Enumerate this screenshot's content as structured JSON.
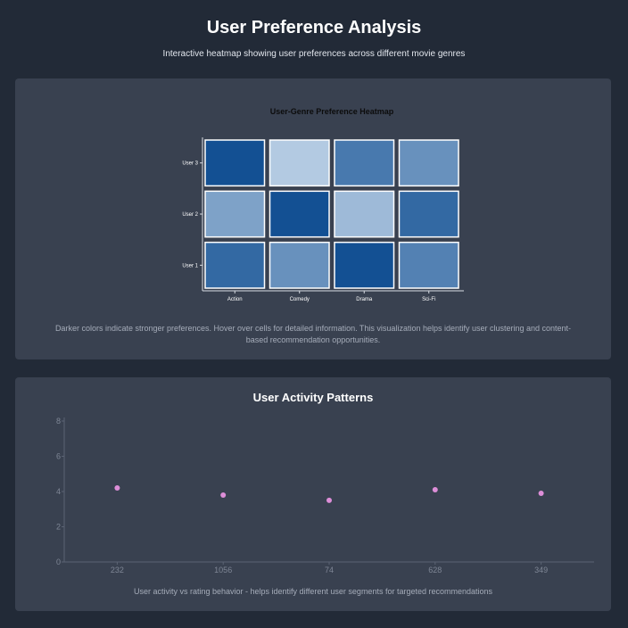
{
  "header": {
    "title": "User Preference Analysis",
    "subtitle": "Interactive heatmap showing user preferences across different movie genres"
  },
  "heatmap": {
    "caption": "Darker colors indicate stronger preferences. Hover over cells for detailed information. This visualization helps identify user clustering and content-based recommendation opportunities."
  },
  "activity": {
    "caption": "User activity vs rating behavior - helps identify different user segments for targeted recommendations"
  },
  "chart_data": [
    {
      "type": "heatmap",
      "title": "User-Genre Preference Heatmap",
      "x_categories": [
        "Action",
        "Comedy",
        "Drama",
        "Sci-Fi"
      ],
      "y_categories": [
        "User 1",
        "User 2",
        "User 3"
      ],
      "values": [
        [
          0.8,
          0.55,
          0.95,
          0.65
        ],
        [
          0.45,
          0.95,
          0.3,
          0.8
        ],
        [
          0.95,
          0.2,
          0.7,
          0.55
        ]
      ],
      "color_scale": [
        "#deebf7",
        "#08488e"
      ],
      "legend": "none"
    },
    {
      "type": "scatter",
      "title": "User Activity Patterns",
      "x_categories": [
        "232",
        "1056",
        "74",
        "628",
        "349"
      ],
      "y": [
        4.2,
        3.8,
        3.5,
        4.1,
        3.9
      ],
      "ylim": [
        0,
        8
      ],
      "y_ticks": [
        0,
        2,
        4,
        6,
        8
      ],
      "grid": false,
      "point_color": "#dd8ed8"
    }
  ]
}
